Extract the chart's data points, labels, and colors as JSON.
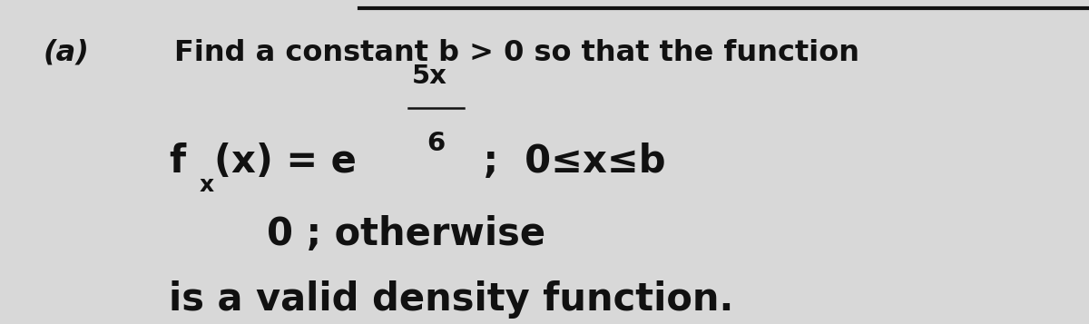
{
  "background_color": "#d8d8d8",
  "label_a": "(a)",
  "line1": "Find a constant b > 0 so that the function",
  "exponent_num": "5x",
  "exponent_den": "6",
  "line_condition": " ;  0≤x≤b",
  "line_zero": "0 ; otherwise",
  "line_valid": "is a valid density function.",
  "top_bar_color": "#111111",
  "text_color": "#111111",
  "fig_width": 12.0,
  "fig_height": 3.57,
  "dpi": 100
}
